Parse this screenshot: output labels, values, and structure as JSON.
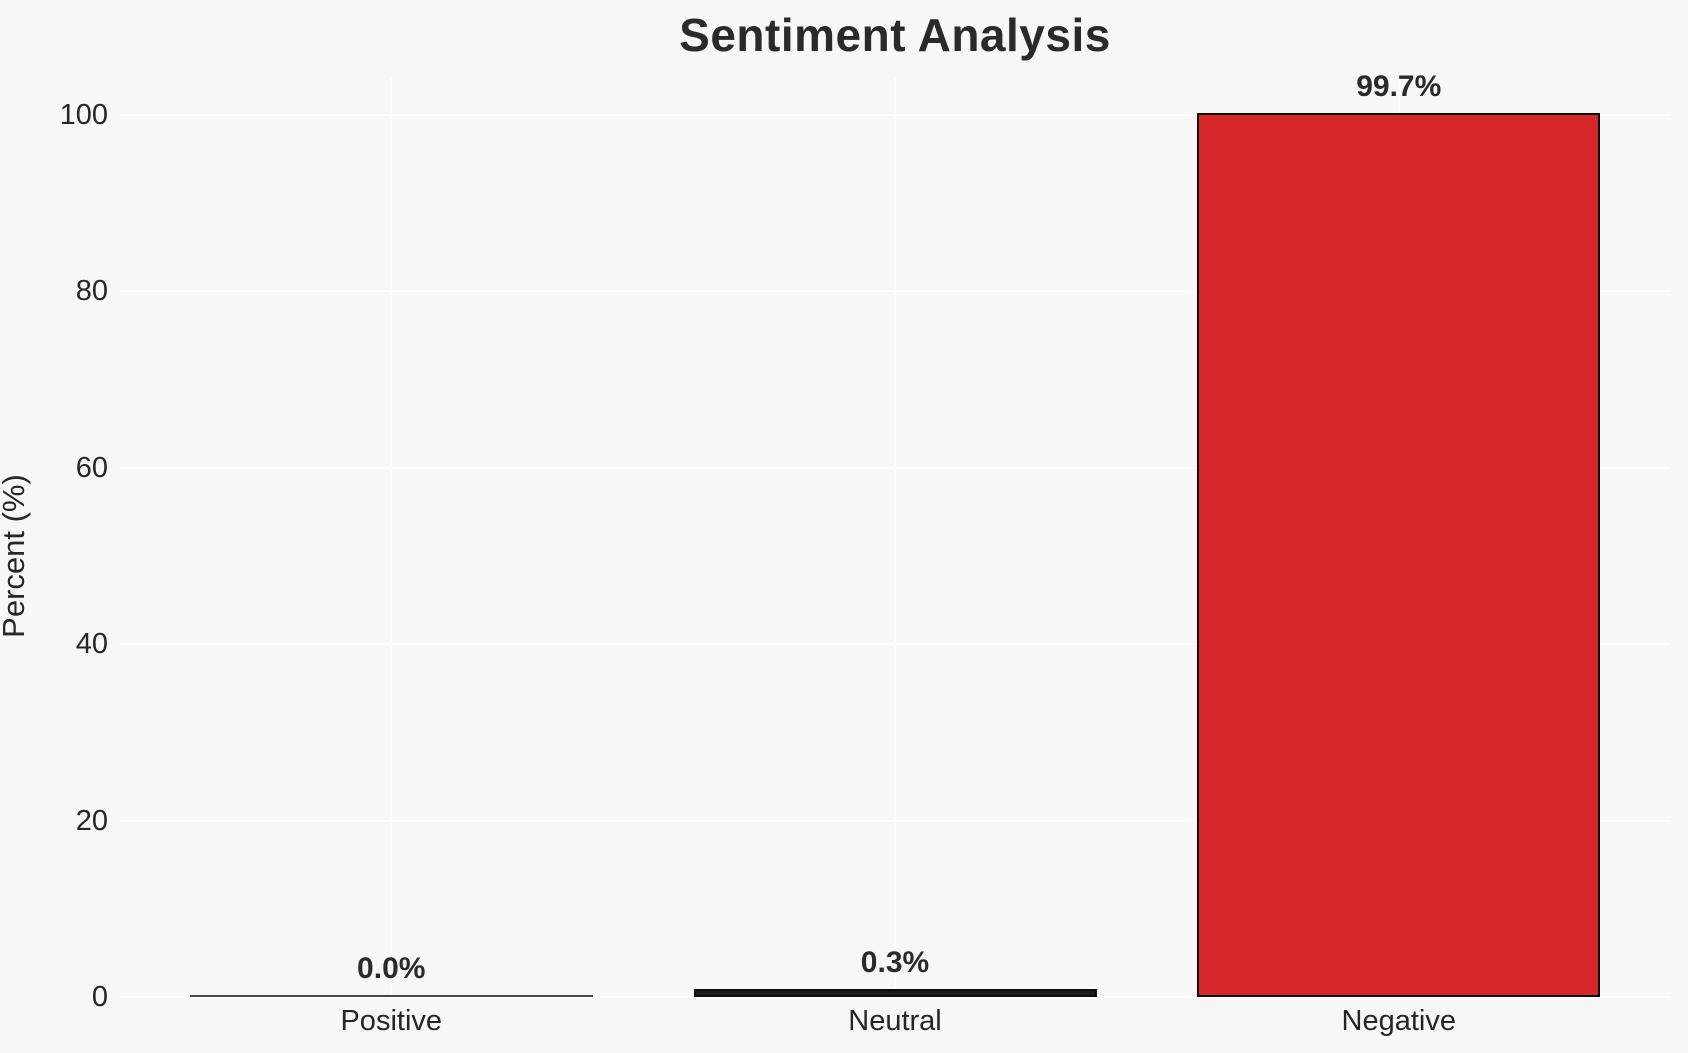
{
  "title": "Sentiment Analysis",
  "chart_data": {
    "type": "bar",
    "title": "Sentiment Analysis",
    "xlabel": "",
    "ylabel": "Percent (%)",
    "categories": [
      "Positive",
      "Neutral",
      "Negative"
    ],
    "values": [
      0.0,
      0.3,
      99.7
    ],
    "value_labels": [
      "0.0%",
      "0.3%",
      "99.7%"
    ],
    "bar_colors": [
      "#1a1a1a",
      "#1a1a1a",
      "#d62728"
    ],
    "bar_edge_color": "#0d0d0d",
    "ylim": [
      0,
      100
    ],
    "yticks": [
      0,
      20,
      40,
      60,
      80,
      100
    ],
    "legend_position": "none",
    "grid": "on",
    "grid_color": "#ffffff",
    "background_color": "#f7f7f7",
    "text_color": "#262626",
    "title_color": "#2a2a2a"
  }
}
